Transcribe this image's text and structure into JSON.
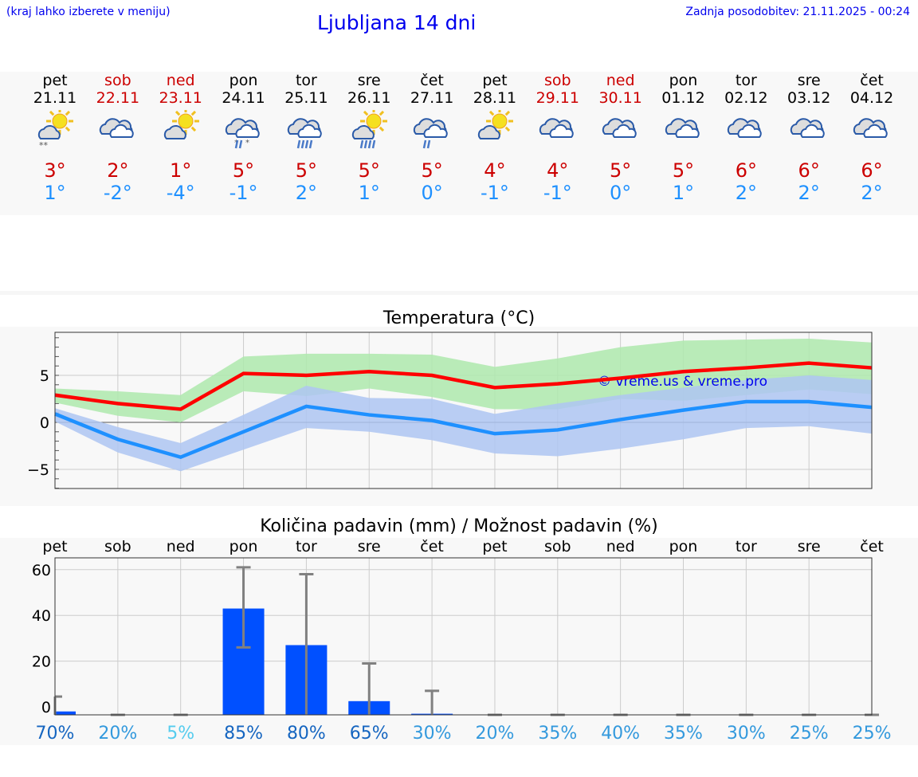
{
  "header": {
    "hint": "(kraj lahko izberete v meniju)",
    "title": "Ljubljana 14 dni",
    "updated": "Zadnja posodobitev: 21.11.2025 - 00:24"
  },
  "days": [
    {
      "name": "pet",
      "date": "21.11",
      "weekend": false,
      "icon": "sun-cloud-snow",
      "max": "3°",
      "min": "1°"
    },
    {
      "name": "sob",
      "date": "22.11",
      "weekend": true,
      "icon": "clouds",
      "max": "2°",
      "min": "-2°"
    },
    {
      "name": "ned",
      "date": "23.11",
      "weekend": true,
      "icon": "sun-cloud",
      "max": "1°",
      "min": "-4°"
    },
    {
      "name": "pon",
      "date": "24.11",
      "weekend": false,
      "icon": "clouds-sleet",
      "max": "5°",
      "min": "-1°"
    },
    {
      "name": "tor",
      "date": "25.11",
      "weekend": false,
      "icon": "clouds-rain",
      "max": "5°",
      "min": "2°"
    },
    {
      "name": "sre",
      "date": "26.11",
      "weekend": false,
      "icon": "sun-cloud-rain",
      "max": "5°",
      "min": "1°"
    },
    {
      "name": "čet",
      "date": "27.11",
      "weekend": false,
      "icon": "clouds-light-rain",
      "max": "5°",
      "min": "0°"
    },
    {
      "name": "pet",
      "date": "28.11",
      "weekend": false,
      "icon": "sun-cloud",
      "max": "4°",
      "min": "-1°"
    },
    {
      "name": "sob",
      "date": "29.11",
      "weekend": true,
      "icon": "clouds",
      "max": "4°",
      "min": "-1°"
    },
    {
      "name": "ned",
      "date": "30.11",
      "weekend": true,
      "icon": "clouds",
      "max": "5°",
      "min": "0°"
    },
    {
      "name": "pon",
      "date": "01.12",
      "weekend": false,
      "icon": "clouds",
      "max": "5°",
      "min": "1°"
    },
    {
      "name": "tor",
      "date": "02.12",
      "weekend": false,
      "icon": "clouds",
      "max": "6°",
      "min": "2°"
    },
    {
      "name": "sre",
      "date": "03.12",
      "weekend": false,
      "icon": "clouds",
      "max": "6°",
      "min": "2°"
    },
    {
      "name": "čet",
      "date": "04.12",
      "weekend": false,
      "icon": "clouds",
      "max": "6°",
      "min": "2°"
    }
  ],
  "colors": {
    "weekend": "#cc0000",
    "max": "#cc0000",
    "min": "#1e90ff",
    "max_line": "#ff0000",
    "max_band": "#aee9ad",
    "min_line": "#1e90ff",
    "min_band": "#aec6f2",
    "bar": "#0050ff",
    "error": "#808080"
  },
  "chart_data": [
    {
      "type": "line",
      "title": "Temperatura (°C)",
      "ylim": [
        -7,
        9.6
      ],
      "yticks": [
        "5",
        "0",
        "−5"
      ],
      "ytick_values": [
        5,
        0,
        -5
      ],
      "grid": true,
      "watermark": "© vreme.us & vreme.pro",
      "series": [
        {
          "role": "max",
          "values": [
            2.9,
            2.0,
            1.4,
            5.2,
            5.0,
            5.4,
            5.0,
            3.7,
            4.1,
            4.7,
            5.4,
            5.8,
            6.3,
            5.8
          ],
          "band_upper": [
            3.6,
            3.3,
            2.9,
            7.0,
            7.3,
            7.3,
            7.2,
            5.9,
            6.8,
            8.0,
            8.7,
            8.8,
            8.9,
            8.5
          ],
          "band_lower": [
            2.1,
            0.7,
            0.0,
            3.3,
            2.8,
            3.6,
            2.7,
            1.4,
            1.4,
            2.5,
            2.3,
            2.9,
            3.5,
            3.0
          ]
        },
        {
          "role": "min",
          "values": [
            0.9,
            -1.8,
            -3.7,
            -1.0,
            1.7,
            0.8,
            0.2,
            -1.2,
            -0.8,
            0.3,
            1.3,
            2.2,
            2.2,
            1.6
          ],
          "band_upper": [
            1.5,
            -0.5,
            -2.2,
            0.8,
            3.9,
            2.6,
            2.5,
            0.9,
            2.0,
            2.9,
            3.7,
            4.5,
            5.0,
            4.5
          ],
          "band_lower": [
            0.1,
            -3.2,
            -5.2,
            -2.9,
            -0.6,
            -1.0,
            -1.9,
            -3.3,
            -3.6,
            -2.8,
            -1.8,
            -0.6,
            -0.4,
            -1.2
          ]
        }
      ]
    },
    {
      "type": "bar",
      "title": "Količina padavin (mm) / Možnost padavin (%)",
      "ylim": [
        -3.5,
        66
      ],
      "yticks": [
        "60",
        "40",
        "20",
        "0"
      ],
      "ytick_values": [
        60,
        40,
        20,
        0
      ],
      "grid": true,
      "categories": [
        "pet",
        "sob",
        "ned",
        "pon",
        "tor",
        "sre",
        "čet",
        "pet",
        "sob",
        "ned",
        "pon",
        "tor",
        "sre",
        "čet"
      ],
      "values": [
        -2,
        -3.5,
        -3.5,
        43,
        27,
        2.5,
        -3,
        -3.5,
        -3.5,
        -3.5,
        -3.5,
        -3.5,
        -3.5,
        -3.5
      ],
      "error_low": [
        -3.5,
        -3.5,
        -3.5,
        26,
        -3.5,
        -3.5,
        -3.5,
        -3.5,
        -3.5,
        -3.5,
        -3.5,
        -3.5,
        -3.5,
        -3.5
      ],
      "error_high": [
        4.5,
        -3.5,
        -3.5,
        61,
        58,
        19,
        7,
        -3.5,
        -3.5,
        -3.5,
        -3.5,
        -3.5,
        -3.5,
        -3.5
      ],
      "probability": [
        "70%",
        "20%",
        "5%",
        "85%",
        "80%",
        "65%",
        "30%",
        "20%",
        "35%",
        "40%",
        "35%",
        "30%",
        "25%",
        "25%"
      ],
      "probability_colors": [
        "#1565c0",
        "#3399dd",
        "#55ccee",
        "#1565c0",
        "#1565c0",
        "#1565c0",
        "#3399dd",
        "#3399dd",
        "#3399dd",
        "#3399dd",
        "#3399dd",
        "#3399dd",
        "#3399dd",
        "#3399dd"
      ]
    }
  ]
}
